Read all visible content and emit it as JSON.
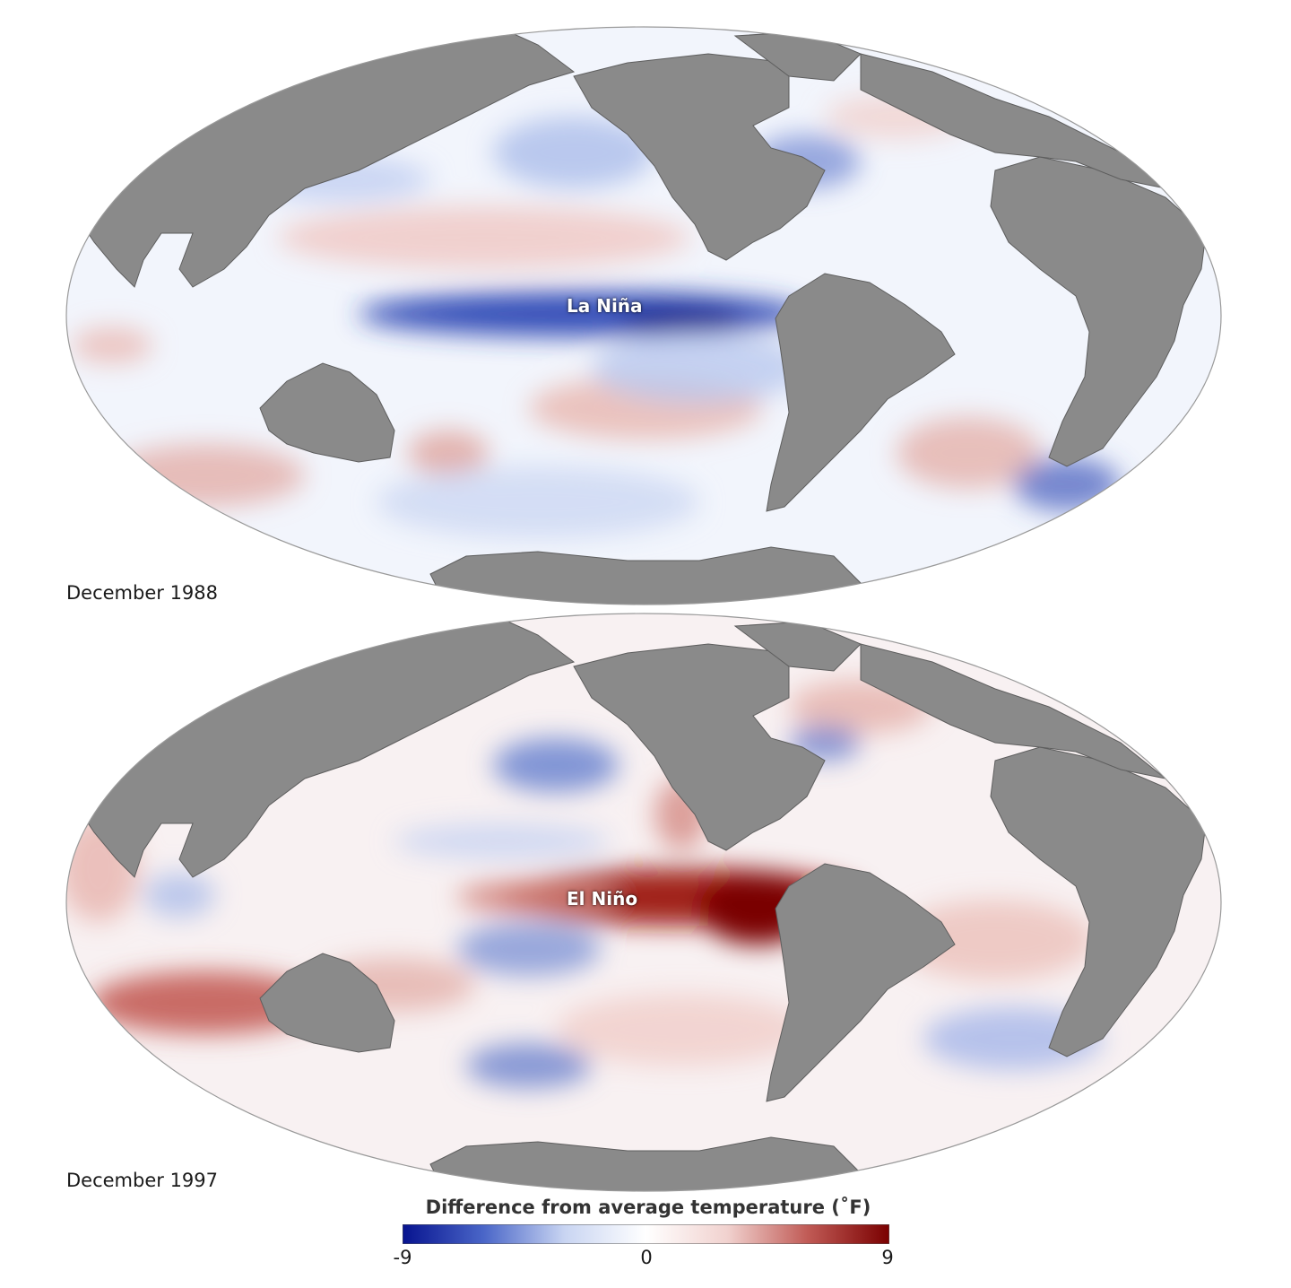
{
  "maps": [
    {
      "caption": "December 1988",
      "anomaly_label": "La Niña",
      "anomaly_color": "#08219a",
      "phase": "cool"
    },
    {
      "caption": "December 1997",
      "anomaly_label": "El Niño",
      "anomaly_color": "#7a0000",
      "phase": "warm"
    }
  ],
  "legend": {
    "title": "Difference from average temperature (˚F)",
    "min_label": "-9",
    "mid_label": "0",
    "max_label": "9",
    "min_value": -9,
    "max_value": 9,
    "colors": [
      "#07138f",
      "#4a66c8",
      "#c9d5f2",
      "#ffffff",
      "#f1d2cf",
      "#c05a55",
      "#7a0000"
    ]
  },
  "colors": {
    "land": "#8a8a8a",
    "ocean_neutral": "#f4f6fc"
  }
}
